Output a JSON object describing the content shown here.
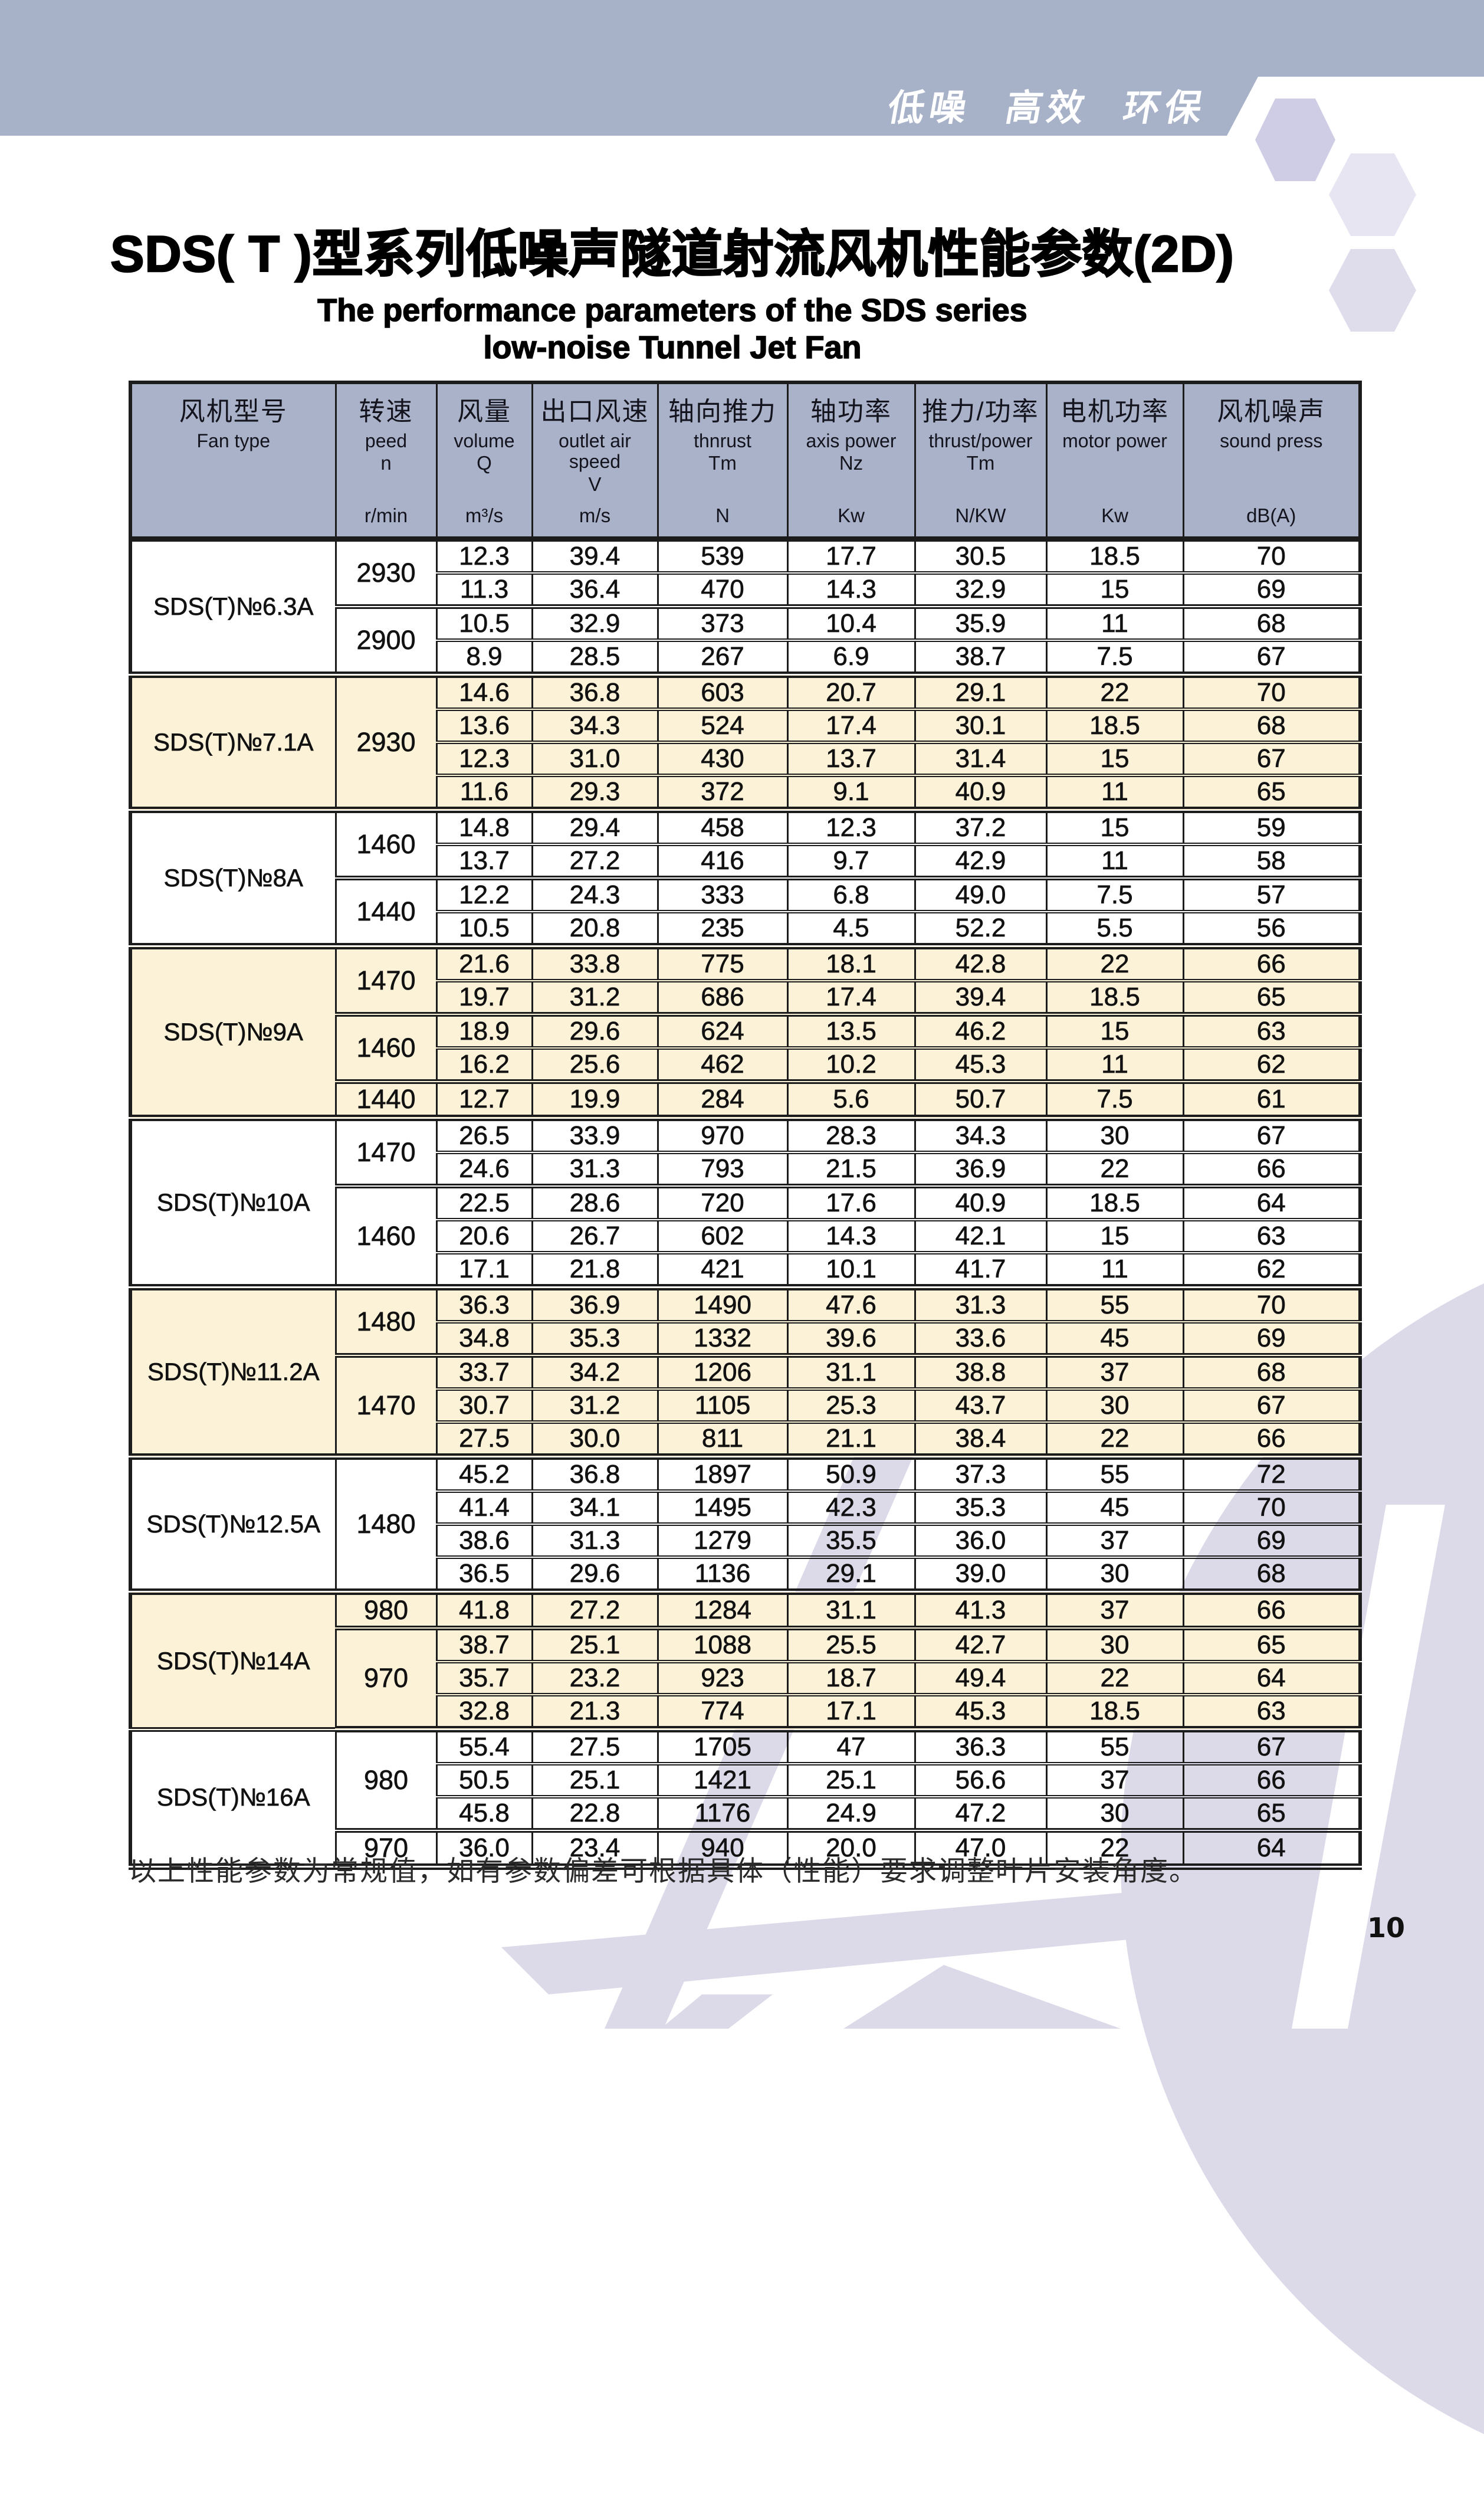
{
  "colors": {
    "band_bg": "#a7b1c8",
    "header_bg": "#a9b2c9",
    "cream": "#fcf2d8",
    "lavender": "#dcdae9",
    "hex_dark": "#cfcde5",
    "hex_mid": "#dfddeb",
    "hex_light": "#e7e5f2",
    "border": "#1c1c1c",
    "text": "#111111"
  },
  "banner": {
    "slogan": "低噪 高效 环保"
  },
  "title": {
    "cn": "SDS( T )型系列低噪声隧道射流风机性能参数(2D)",
    "en_line1": "The performance parameters of the SDS series",
    "en_line2": "low-noise Tunnel Jet Fan"
  },
  "table": {
    "columns": [
      {
        "cn": "风机型号",
        "en": "Fan type",
        "sym": "",
        "unit": ""
      },
      {
        "cn": "转速",
        "en": "peed",
        "sym": "n",
        "unit": "r/min"
      },
      {
        "cn": "风量",
        "en": "volume",
        "sym": "Q",
        "unit": "m³/s"
      },
      {
        "cn": "出口风速",
        "en": "outlet air speed",
        "sym": "V",
        "unit": "m/s"
      },
      {
        "cn": "轴向推力",
        "en": "thnrust",
        "sym": "Tm",
        "unit": "N"
      },
      {
        "cn": "轴功率",
        "en": "axis power",
        "sym": "Nz",
        "unit": "Kw"
      },
      {
        "cn": "推力/功率",
        "en": "thrust/power",
        "sym": "Tm",
        "unit": "N/KW"
      },
      {
        "cn": "电机功率",
        "en": "motor power",
        "sym": "",
        "unit": "Kw"
      },
      {
        "cn": "风机噪声",
        "en": "sound press",
        "sym": "",
        "unit": "dB(A)"
      }
    ],
    "groups": [
      {
        "model": "SDS(T)№6.3A",
        "tone": "white",
        "blocks": [
          {
            "speed": "2930",
            "rows": [
              [
                "12.3",
                "39.4",
                "539",
                "17.7",
                "30.5",
                "18.5",
                "70"
              ],
              [
                "11.3",
                "36.4",
                "470",
                "14.3",
                "32.9",
                "15",
                "69"
              ]
            ]
          },
          {
            "speed": "2900",
            "rows": [
              [
                "10.5",
                "32.9",
                "373",
                "10.4",
                "35.9",
                "11",
                "68"
              ],
              [
                "8.9",
                "28.5",
                "267",
                "6.9",
                "38.7",
                "7.5",
                "67"
              ]
            ]
          }
        ]
      },
      {
        "model": "SDS(T)№7.1A",
        "tone": "cream",
        "blocks": [
          {
            "speed": "2930",
            "rows": [
              [
                "14.6",
                "36.8",
                "603",
                "20.7",
                "29.1",
                "22",
                "70"
              ],
              [
                "13.6",
                "34.3",
                "524",
                "17.4",
                "30.1",
                "18.5",
                "68"
              ],
              [
                "12.3",
                "31.0",
                "430",
                "13.7",
                "31.4",
                "15",
                "67"
              ],
              [
                "11.6",
                "29.3",
                "372",
                "9.1",
                "40.9",
                "11",
                "65"
              ]
            ]
          }
        ]
      },
      {
        "model": "SDS(T)№8A",
        "tone": "white",
        "blocks": [
          {
            "speed": "1460",
            "rows": [
              [
                "14.8",
                "29.4",
                "458",
                "12.3",
                "37.2",
                "15",
                "59"
              ],
              [
                "13.7",
                "27.2",
                "416",
                "9.7",
                "42.9",
                "11",
                "58"
              ]
            ]
          },
          {
            "speed": "1440",
            "rows": [
              [
                "12.2",
                "24.3",
                "333",
                "6.8",
                "49.0",
                "7.5",
                "57"
              ],
              [
                "10.5",
                "20.8",
                "235",
                "4.5",
                "52.2",
                "5.5",
                "56"
              ]
            ]
          }
        ]
      },
      {
        "model": "SDS(T)№9A",
        "tone": "cream",
        "blocks": [
          {
            "speed": "1470",
            "rows": [
              [
                "21.6",
                "33.8",
                "775",
                "18.1",
                "42.8",
                "22",
                "66"
              ],
              [
                "19.7",
                "31.2",
                "686",
                "17.4",
                "39.4",
                "18.5",
                "65"
              ]
            ]
          },
          {
            "speed": "1460",
            "rows": [
              [
                "18.9",
                "29.6",
                "624",
                "13.5",
                "46.2",
                "15",
                "63"
              ],
              [
                "16.2",
                "25.6",
                "462",
                "10.2",
                "45.3",
                "11",
                "62"
              ]
            ]
          },
          {
            "speed": "1440",
            "rows": [
              [
                "12.7",
                "19.9",
                "284",
                "5.6",
                "50.7",
                "7.5",
                "61"
              ]
            ]
          }
        ]
      },
      {
        "model": "SDS(T)№10A",
        "tone": "white",
        "blocks": [
          {
            "speed": "1470",
            "rows": [
              [
                "26.5",
                "33.9",
                "970",
                "28.3",
                "34.3",
                "30",
                "67"
              ],
              [
                "24.6",
                "31.3",
                "793",
                "21.5",
                "36.9",
                "22",
                "66"
              ]
            ]
          },
          {
            "speed": "1460",
            "rows": [
              [
                "22.5",
                "28.6",
                "720",
                "17.6",
                "40.9",
                "18.5",
                "64"
              ],
              [
                "20.6",
                "26.7",
                "602",
                "14.3",
                "42.1",
                "15",
                "63"
              ],
              [
                "17.1",
                "21.8",
                "421",
                "10.1",
                "41.7",
                "11",
                "62"
              ]
            ]
          }
        ]
      },
      {
        "model": "SDS(T)№11.2A",
        "tone": "cream",
        "blocks": [
          {
            "speed": "1480",
            "rows": [
              [
                "36.3",
                "36.9",
                "1490",
                "47.6",
                "31.3",
                "55",
                "70"
              ],
              [
                "34.8",
                "35.3",
                "1332",
                "39.6",
                "33.6",
                "45",
                "69"
              ]
            ]
          },
          {
            "speed": "1470",
            "rows": [
              [
                "33.7",
                "34.2",
                "1206",
                "31.1",
                "38.8",
                "37",
                "68"
              ],
              [
                "30.7",
                "31.2",
                "1105",
                "25.3",
                "43.7",
                "30",
                "67"
              ],
              [
                "27.5",
                "30.0",
                "811",
                "21.1",
                "38.4",
                "22",
                "66"
              ]
            ]
          }
        ]
      },
      {
        "model": "SDS(T)№12.5A",
        "tone": "white",
        "blocks": [
          {
            "speed": "1480",
            "rows": [
              [
                "45.2",
                "36.8",
                "1897",
                "50.9",
                "37.3",
                "55",
                "72"
              ],
              [
                "41.4",
                "34.1",
                "1495",
                "42.3",
                "35.3",
                "45",
                "70"
              ],
              [
                "38.6",
                "31.3",
                "1279",
                "35.5",
                "36.0",
                "37",
                "69"
              ],
              [
                "36.5",
                "29.6",
                "1136",
                "29.1",
                "39.0",
                "30",
                "68"
              ]
            ]
          }
        ]
      },
      {
        "model": "SDS(T)№14A",
        "tone": "cream",
        "blocks": [
          {
            "speed": "980",
            "rows": [
              [
                "41.8",
                "27.2",
                "1284",
                "31.1",
                "41.3",
                "37",
                "66"
              ]
            ]
          },
          {
            "speed": "970",
            "rows": [
              [
                "38.7",
                "25.1",
                "1088",
                "25.5",
                "42.7",
                "30",
                "65"
              ],
              [
                "35.7",
                "23.2",
                "923",
                "18.7",
                "49.4",
                "22",
                "64"
              ],
              [
                "32.8",
                "21.3",
                "774",
                "17.1",
                "45.3",
                "18.5",
                "63"
              ]
            ]
          }
        ]
      },
      {
        "model": "SDS(T)№16A",
        "tone": "white",
        "blocks": [
          {
            "speed": "980",
            "rows": [
              [
                "55.4",
                "27.5",
                "1705",
                "47",
                "36.3",
                "55",
                "67"
              ],
              [
                "50.5",
                "25.1",
                "1421",
                "25.1",
                "56.6",
                "37",
                "66"
              ],
              [
                "45.8",
                "22.8",
                "1176",
                "24.9",
                "47.2",
                "30",
                "65"
              ]
            ]
          },
          {
            "speed": "970",
            "rows": [
              [
                "36.0",
                "23.4",
                "940",
                "20.0",
                "47.0",
                "22",
                "64"
              ]
            ]
          }
        ]
      }
    ]
  },
  "note": "以上性能参数为常规值，如有参数偏差可根据具体（性能）要求调整叶片安装角度。",
  "page_number": "10"
}
